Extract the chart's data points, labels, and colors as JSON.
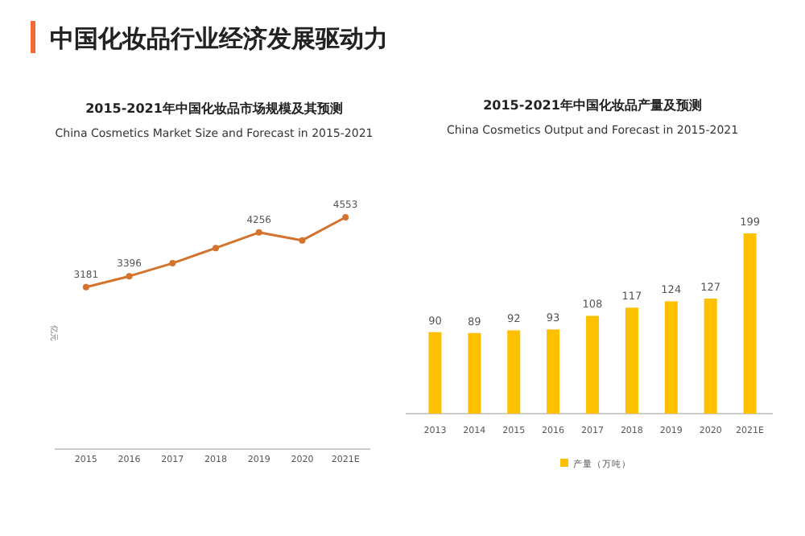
{
  "chart_data": [
    {
      "type": "line",
      "title": "2015-2021年中国化妆品市场规模及其预测",
      "subtitle": "China Cosmetics Market Size and Forecast in 2015-2021",
      "ylabel": "亿元",
      "annotations": [
        "中国化妆品行业经济发展驱动力"
      ],
      "categories": [
        "2015",
        "2016",
        "2017",
        "2018",
        "2019",
        "2020",
        "2021E"
      ],
      "marker": "circle",
      "series": [
        {
          "color": "#d4732e",
          "values": [
            3181,
            3396,
            3650,
            3950,
            4256,
            4100,
            4553
          ],
          "value_labels": [
            "3181",
            "3396",
            null,
            null,
            "4256",
            null,
            "4553"
          ]
        }
      ]
    },
    {
      "type": "bar",
      "title": "2015-2021年中国化妆品产量及预测",
      "subtitle": "China Cosmetics Output and Forecast in 2015-2021",
      "categories": [
        "2013",
        "2014",
        "2015",
        "2016",
        "2017",
        "2018",
        "2019",
        "2020",
        "2021E"
      ],
      "data_labels": true,
      "legend": "bottom",
      "series": [
        {
          "name": "产量（万吨）",
          "color": "#ffc000",
          "values": [
            90,
            89,
            92,
            93,
            108,
            117,
            124,
            127,
            199
          ]
        }
      ]
    }
  ]
}
